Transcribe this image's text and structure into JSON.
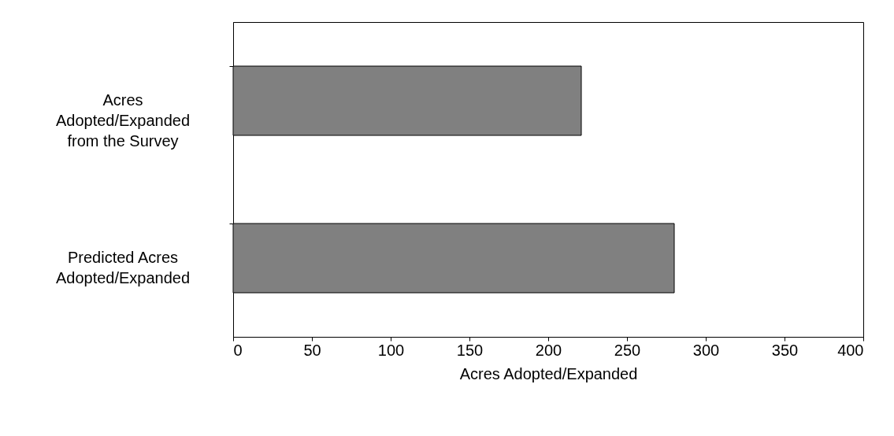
{
  "chart_data": {
    "type": "bar",
    "orientation": "horizontal",
    "xlabel": "Acres Adopted/Expanded",
    "categories": [
      "Acres Adopted/Expanded from the Survey",
      "Predicted Acres Adopted/Expanded"
    ],
    "values": [
      221,
      280
    ],
    "color": "#808080",
    "xlim": [
      0,
      400
    ],
    "xticks": [
      0,
      50,
      100,
      150,
      200,
      250,
      300,
      350,
      400
    ],
    "grid": false
  }
}
